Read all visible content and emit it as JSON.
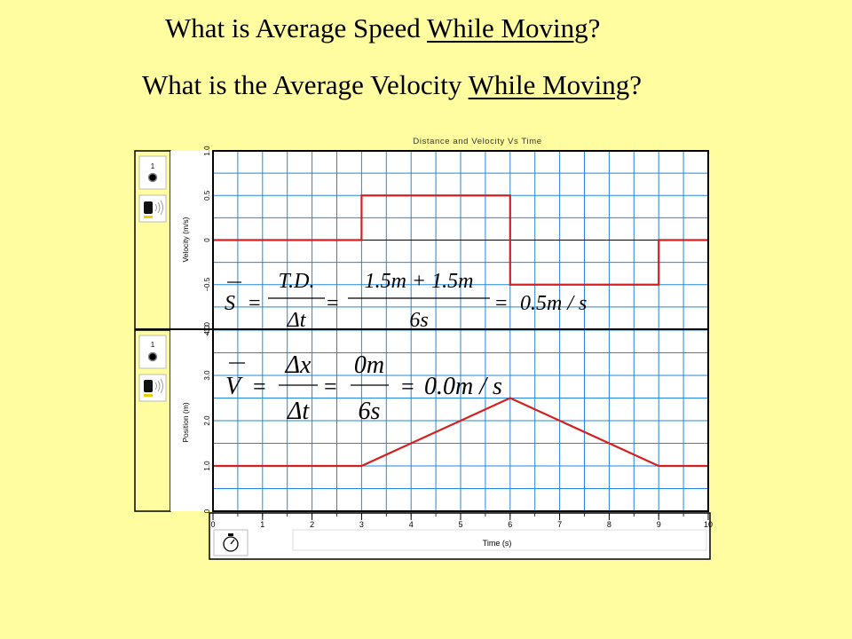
{
  "headline_1": {
    "prefix": "What is Average Speed ",
    "underlined": "While Moving",
    "suffix": "?"
  },
  "headline_2": {
    "prefix": "What is the Average Velocity ",
    "underlined": "While Moving",
    "suffix": "?"
  },
  "chart_data": {
    "title": "Distance and Velocity Vs Time",
    "x_label": "Time (s)",
    "x_ticks": [
      "0",
      "1",
      "2",
      "3",
      "4",
      "5",
      "6",
      "7",
      "8",
      "9",
      "10"
    ],
    "x_range": [
      0,
      10
    ],
    "grid": true,
    "panels": [
      {
        "type": "line",
        "y_label": "Velocity (m/s)",
        "y_range": [
          -1.0,
          1.0
        ],
        "y_ticks": [
          "1.0",
          "0.5",
          "0",
          "−0.5",
          "−1.0"
        ],
        "series": [
          {
            "x": [
              0,
              3,
              3,
              6,
              6,
              9,
              9,
              10
            ],
            "y": [
              0,
              0,
              0.5,
              0.5,
              -0.5,
              -0.5,
              0,
              0
            ]
          }
        ],
        "color": "#D42020"
      },
      {
        "type": "line",
        "y_label": "Position (m)",
        "y_range": [
          0,
          4.0
        ],
        "y_ticks": [
          "4.0",
          "3.0",
          "2.0",
          "1.0",
          "0"
        ],
        "series": [
          {
            "x": [
              0,
              3,
              6,
              9,
              10
            ],
            "y": [
              1.0,
              1.0,
              2.5,
              1.0,
              1.0
            ]
          }
        ],
        "color": "#D42020"
      }
    ],
    "sensor_channel_label": "1"
  },
  "equations": {
    "speed": {
      "lhs": "S",
      "eq1": "=",
      "frac1_num": "T.D.",
      "frac1_den": "Δt",
      "eq2": "=",
      "frac2_num": "1.5m + 1.5m",
      "frac2_den": "6s",
      "eq3": "=",
      "result": "0.5m / s"
    },
    "velocity": {
      "lhs": "V",
      "eq1": "=",
      "frac1_num": "Δx",
      "frac1_den": "Δt",
      "eq2": "=",
      "frac2_num": "0m",
      "frac2_den": "6s",
      "eq3": "=",
      "result": "0.0m / s"
    }
  },
  "icons": {
    "record": "record-button-icon",
    "sensor": "motion-sensor-icon",
    "timer": "stopwatch-icon"
  },
  "colors": {
    "background": "#FFFDA0",
    "grid": "#2288DD",
    "trace": "#D42020",
    "panel_border": "#000000"
  }
}
